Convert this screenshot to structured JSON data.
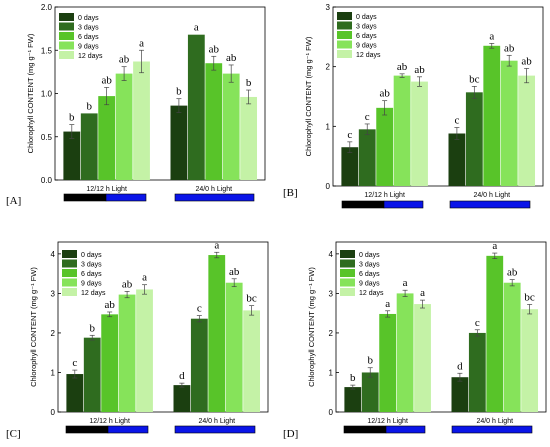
{
  "chart_data": [
    {
      "type": "bar",
      "panel_label": "[A]",
      "ylabel": "Chlorophyll CONTENT (mg g⁻¹ FW)",
      "ylim": [
        0,
        2.0
      ],
      "yticks": [
        "0.0",
        "0.5",
        "1.0",
        "1.5",
        "2.0"
      ],
      "categories": [
        "12/12 h Light",
        "24/0 h Light"
      ],
      "series": [
        {
          "name": "0 days",
          "values": [
            0.56,
            0.86
          ],
          "errors": [
            0.08,
            0.08
          ],
          "letters": [
            "b",
            "b"
          ]
        },
        {
          "name": "3 days",
          "values": [
            0.77,
            1.68
          ],
          "errors": [
            0.0,
            0.0
          ],
          "letters": [
            "b",
            "a"
          ]
        },
        {
          "name": "6 days",
          "values": [
            0.97,
            1.35
          ],
          "errors": [
            0.1,
            0.08
          ],
          "letters": [
            "ab",
            "ab"
          ]
        },
        {
          "name": "9 days",
          "values": [
            1.23,
            1.23
          ],
          "errors": [
            0.08,
            0.1
          ],
          "letters": [
            "ab",
            "ab"
          ]
        },
        {
          "name": "12 days",
          "values": [
            1.37,
            0.96
          ],
          "errors": [
            0.13,
            0.08
          ],
          "letters": [
            "a",
            "b"
          ]
        }
      ]
    },
    {
      "type": "bar",
      "panel_label": "[B]",
      "ylabel": "Chlorophyll CONTENT (mg g⁻¹ FW)",
      "ylim": [
        0,
        3
      ],
      "yticks": [
        "0",
        "1",
        "2",
        "3"
      ],
      "categories": [
        "12/12 h Light",
        "24/0 h Light"
      ],
      "series": [
        {
          "name": "0 days",
          "values": [
            0.65,
            0.88
          ],
          "errors": [
            0.09,
            0.1
          ],
          "letters": [
            "c",
            "c"
          ]
        },
        {
          "name": "3 days",
          "values": [
            0.95,
            1.57
          ],
          "errors": [
            0.09,
            0.1
          ],
          "letters": [
            "c",
            "bc"
          ]
        },
        {
          "name": "6 days",
          "values": [
            1.31,
            2.35
          ],
          "errors": [
            0.12,
            0.04
          ],
          "letters": [
            "ab",
            "a"
          ]
        },
        {
          "name": "9 days",
          "values": [
            1.85,
            2.1
          ],
          "errors": [
            0.03,
            0.09
          ],
          "letters": [
            "ab",
            "ab"
          ]
        },
        {
          "name": "12 days",
          "values": [
            1.75,
            1.85
          ],
          "errors": [
            0.08,
            0.12
          ],
          "letters": [
            "ab",
            "ab"
          ]
        }
      ]
    },
    {
      "type": "bar",
      "panel_label": "[C]",
      "ylabel": "Chlorophyll CONTENT (mg g⁻¹ FW)",
      "ylim": [
        0,
        4.3
      ],
      "yticks": [
        "0",
        "1",
        "2",
        "3",
        "4"
      ],
      "categories": [
        "12/12 h Light",
        "24/0 h Light"
      ],
      "series": [
        {
          "name": "0 days",
          "values": [
            0.96,
            0.68
          ],
          "errors": [
            0.1,
            0.05
          ],
          "letters": [
            "c",
            "d"
          ]
        },
        {
          "name": "3 days",
          "values": [
            1.88,
            2.36
          ],
          "errors": [
            0.06,
            0.08
          ],
          "letters": [
            "b",
            "c"
          ]
        },
        {
          "name": "6 days",
          "values": [
            2.47,
            3.97
          ],
          "errors": [
            0.06,
            0.07
          ],
          "letters": [
            "ab",
            "a"
          ]
        },
        {
          "name": "9 days",
          "values": [
            2.97,
            3.27
          ],
          "errors": [
            0.08,
            0.1
          ],
          "letters": [
            "ab",
            "ab"
          ]
        },
        {
          "name": "12 days",
          "values": [
            3.1,
            2.57
          ],
          "errors": [
            0.12,
            0.12
          ],
          "letters": [
            "a",
            "bc"
          ]
        }
      ]
    },
    {
      "type": "bar",
      "panel_label": "[D]",
      "ylabel": "Chlorophyll CONTENT (mg g⁻¹ FW)",
      "ylim": [
        0,
        4.3
      ],
      "yticks": [
        "0",
        "1",
        "2",
        "3",
        "4"
      ],
      "categories": [
        "12/12 h Light",
        "24/0 h Light"
      ],
      "series": [
        {
          "name": "0 days",
          "values": [
            0.63,
            0.88
          ],
          "errors": [
            0.05,
            0.1
          ],
          "letters": [
            "b",
            "d"
          ]
        },
        {
          "name": "3 days",
          "values": [
            1.0,
            2.0
          ],
          "errors": [
            0.12,
            0.08
          ],
          "letters": [
            "b",
            "c"
          ]
        },
        {
          "name": "6 days",
          "values": [
            2.48,
            3.95
          ],
          "errors": [
            0.08,
            0.07
          ],
          "letters": [
            "a",
            "a"
          ]
        },
        {
          "name": "9 days",
          "values": [
            3.0,
            3.27
          ],
          "errors": [
            0.08,
            0.08
          ],
          "letters": [
            "a",
            "ab"
          ]
        },
        {
          "name": "12 days",
          "values": [
            2.73,
            2.6
          ],
          "errors": [
            0.1,
            0.12
          ],
          "letters": [
            "a",
            "bc"
          ]
        }
      ]
    }
  ],
  "colors": {
    "series": [
      "#1b3f10",
      "#2f6c1f",
      "#58c429",
      "#86e35a",
      "#c4f2a6"
    ],
    "photoperiod_dark": "#000000",
    "photoperiod_light": "#0a14e8"
  }
}
